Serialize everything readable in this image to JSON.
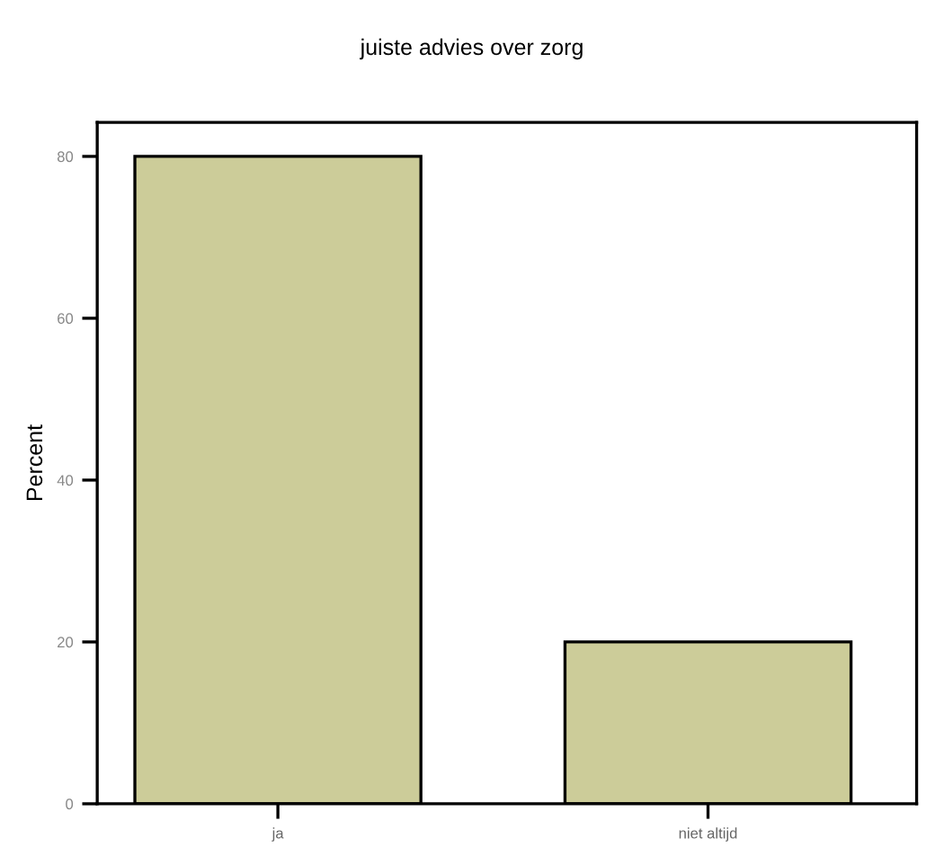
{
  "chart_data": {
    "type": "bar",
    "title": "juiste advies over zorg",
    "ylabel": "Percent",
    "categories": [
      "ja",
      "niet altijd"
    ],
    "values": [
      80,
      20
    ],
    "color": "#cccc99",
    "ylim": [
      0,
      84.2
    ],
    "yticks": [
      0,
      20,
      40,
      60,
      80
    ],
    "grid": false
  }
}
